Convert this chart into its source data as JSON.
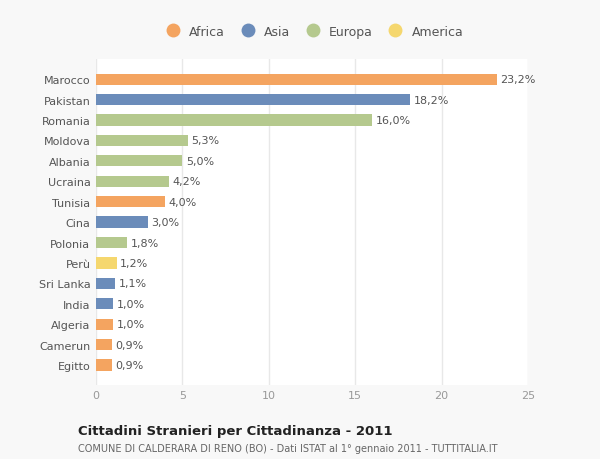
{
  "countries": [
    "Marocco",
    "Pakistan",
    "Romania",
    "Moldova",
    "Albania",
    "Ucraina",
    "Tunisia",
    "Cina",
    "Polonia",
    "Perù",
    "Sri Lanka",
    "India",
    "Algeria",
    "Camerun",
    "Egitto"
  ],
  "values": [
    23.2,
    18.2,
    16.0,
    5.3,
    5.0,
    4.2,
    4.0,
    3.0,
    1.8,
    1.2,
    1.1,
    1.0,
    1.0,
    0.9,
    0.9
  ],
  "labels": [
    "23,2%",
    "18,2%",
    "16,0%",
    "5,3%",
    "5,0%",
    "4,2%",
    "4,0%",
    "3,0%",
    "1,8%",
    "1,2%",
    "1,1%",
    "1,0%",
    "1,0%",
    "0,9%",
    "0,9%"
  ],
  "continents": [
    "Africa",
    "Asia",
    "Europa",
    "Europa",
    "Europa",
    "Europa",
    "Africa",
    "Asia",
    "Europa",
    "America",
    "Asia",
    "Asia",
    "Africa",
    "Africa",
    "Africa"
  ],
  "colors": {
    "Africa": "#f4a460",
    "Asia": "#6b8cba",
    "Europa": "#b5c98e",
    "America": "#f5d76e"
  },
  "xlim": [
    0,
    25
  ],
  "xticks": [
    0,
    5,
    10,
    15,
    20,
    25
  ],
  "title": "Cittadini Stranieri per Cittadinanza - 2011",
  "subtitle": "COMUNE DI CALDERARA DI RENO (BO) - Dati ISTAT al 1° gennaio 2011 - TUTTITALIA.IT",
  "bg_color": "#f8f8f8",
  "plot_bg": "#ffffff",
  "grid_color": "#e8e8e8",
  "bar_height": 0.55,
  "legend_order": [
    "Africa",
    "Asia",
    "Europa",
    "America"
  ],
  "label_fontsize": 8,
  "ytick_fontsize": 8,
  "xtick_fontsize": 8
}
